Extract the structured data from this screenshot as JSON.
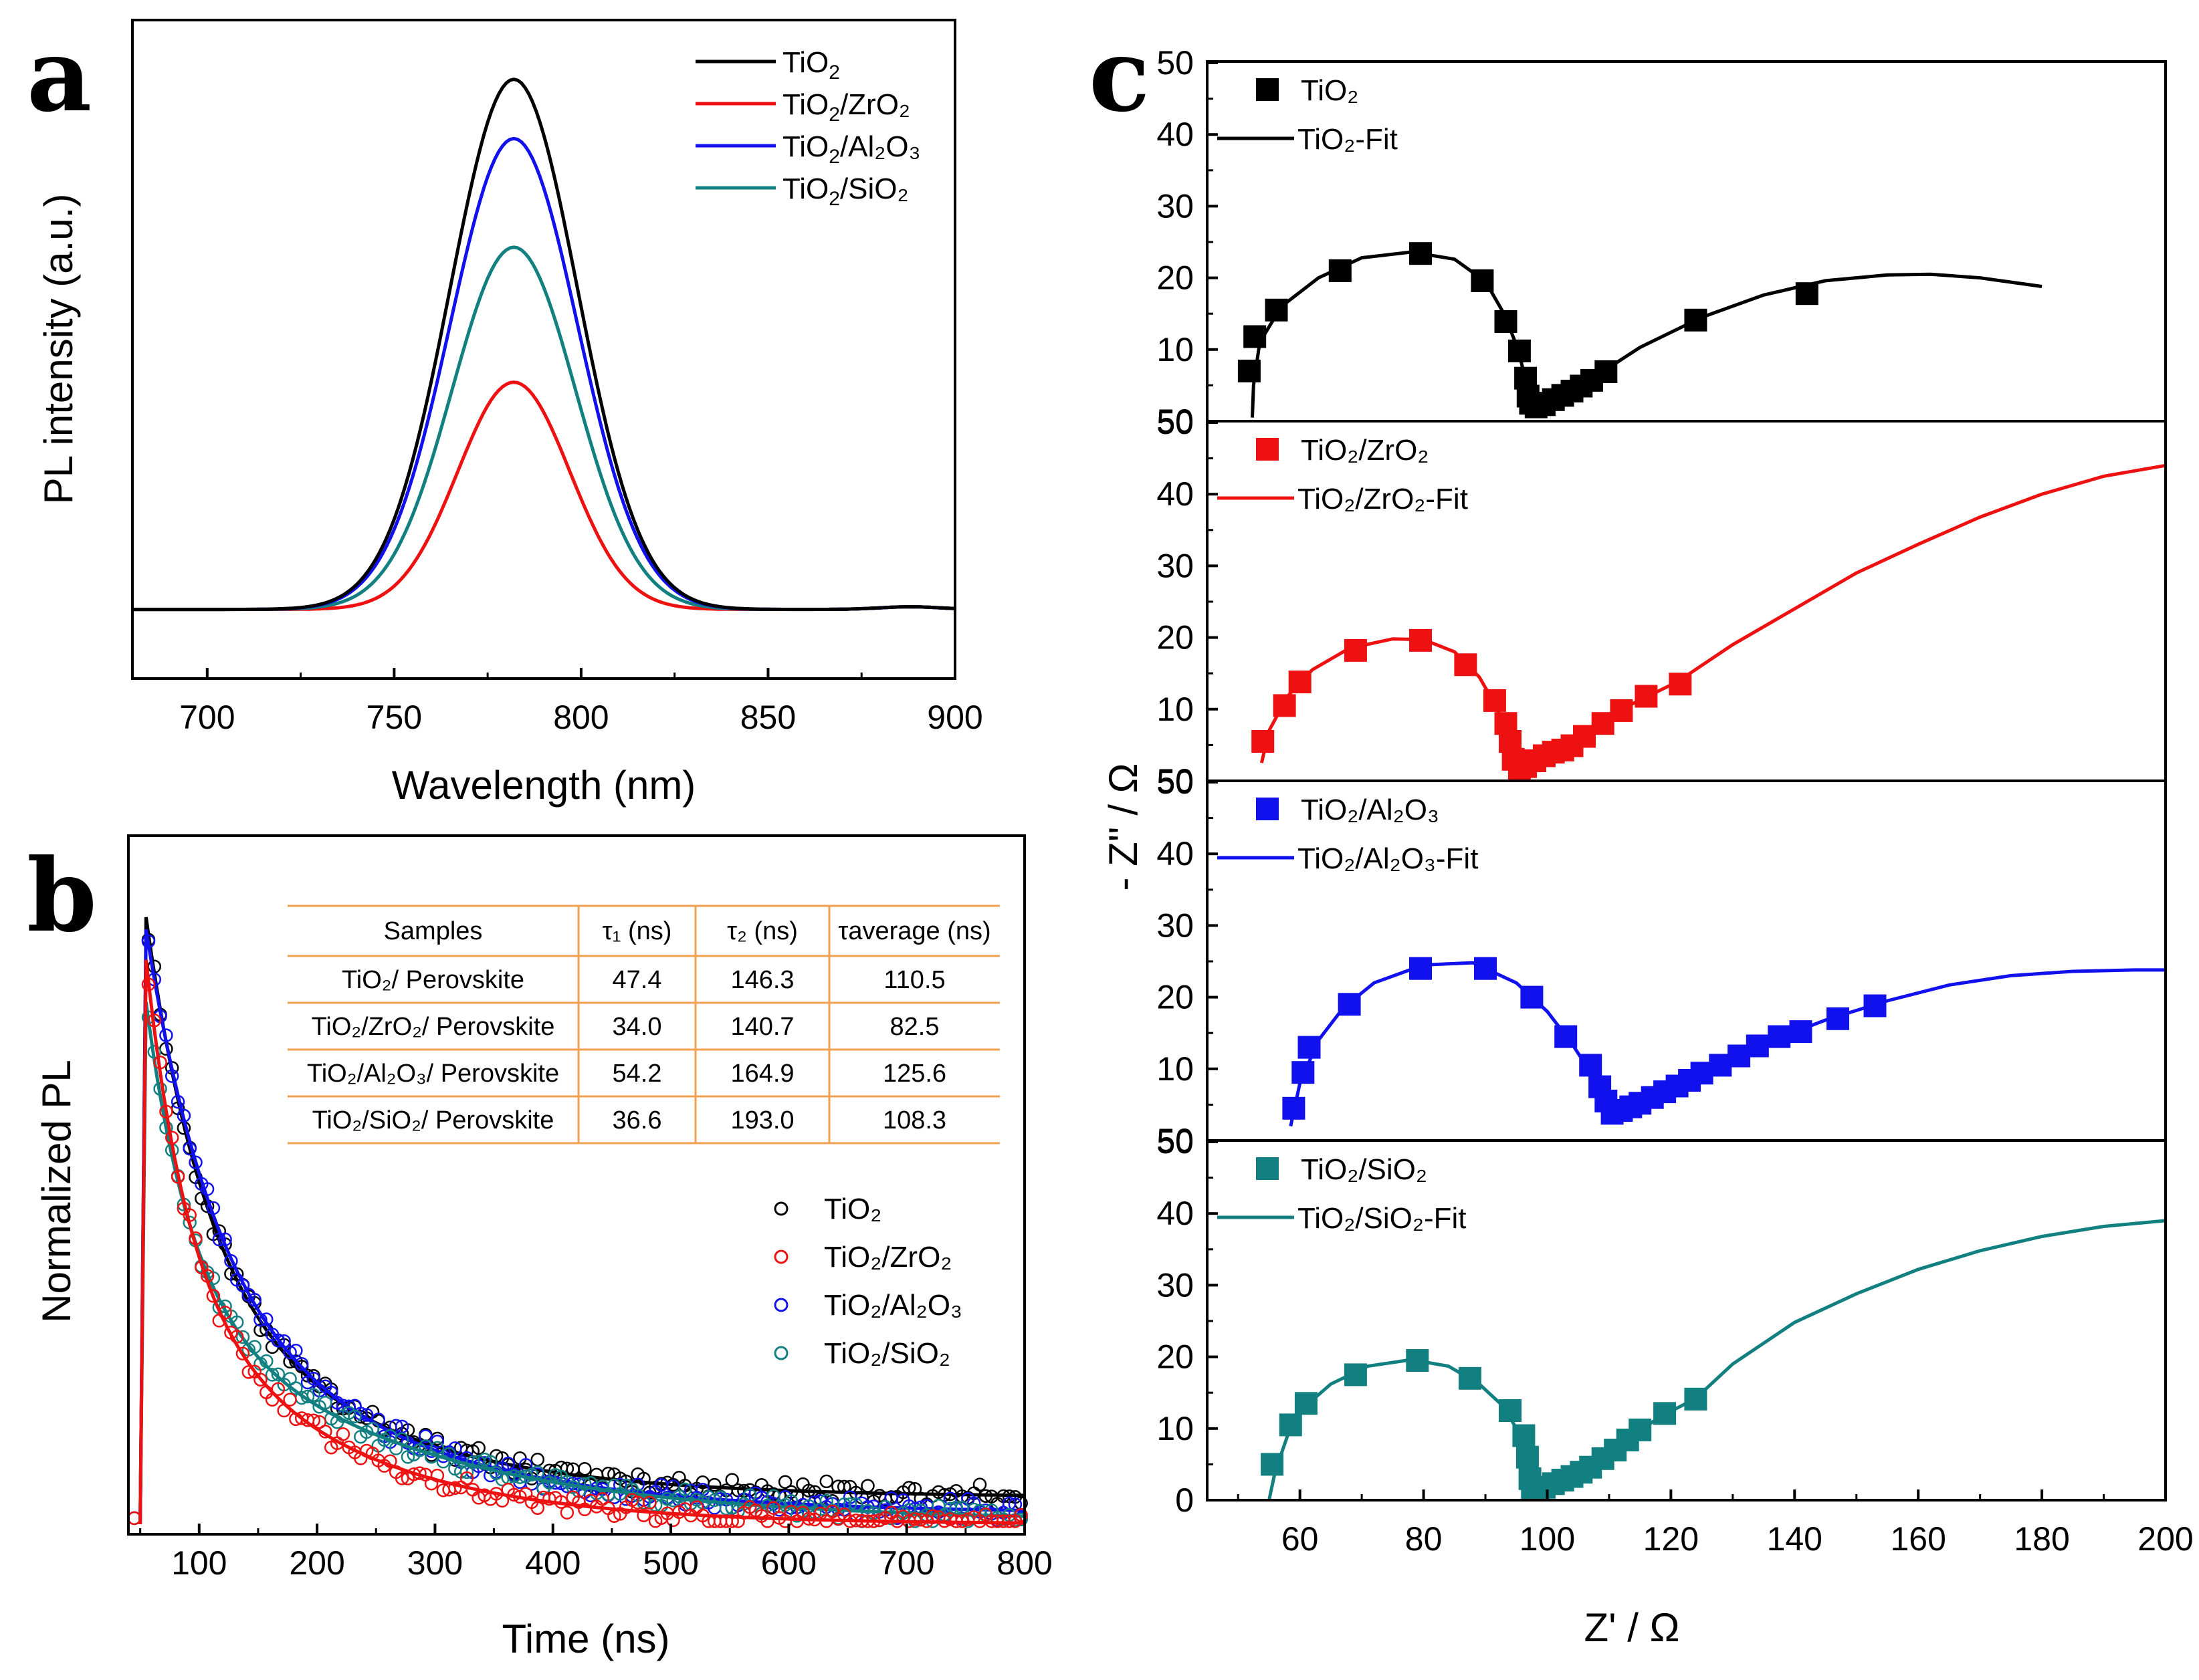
{
  "colors": {
    "tio2": "#000000",
    "zro2": "#ee1111",
    "al2o3": "#1111ee",
    "sio2": "#128080",
    "table_line": "#f0a050"
  },
  "panels": {
    "a": "a",
    "b": "b",
    "c": "c"
  },
  "chart_data": [
    {
      "id": "a",
      "type": "line",
      "title": "",
      "xlabel": "Wavelength (nm)",
      "ylabel": "PL intensity (a.u.)",
      "xlim": [
        680,
        900
      ],
      "ylim": [
        0,
        1
      ],
      "xticks": [
        "700",
        "750",
        "800",
        "850",
        "900"
      ],
      "x_units": "nm",
      "series": [
        {
          "name": "TiO2",
          "label_base": "TiO",
          "label_sub": "2",
          "label_rest": "",
          "color": "#000000",
          "peak_nm": 782,
          "peak": 0.805,
          "sigma": 17.0,
          "baseline": 0.105
        },
        {
          "name": "TiO2/ZrO2",
          "label_base": "TiO",
          "label_sub": "2",
          "label_rest": "/ZrO₂",
          "color": "#ee1111",
          "peak_nm": 782,
          "peak": 0.345,
          "sigma": 15.0,
          "baseline": 0.105
        },
        {
          "name": "TiO2/Al2O3",
          "label_base": "TiO",
          "label_sub": "2",
          "label_rest": "/Al₂O₃",
          "color": "#1111ee",
          "peak_nm": 782,
          "peak": 0.715,
          "sigma": 17.0,
          "baseline": 0.105
        },
        {
          "name": "TiO2/SiO2",
          "label_base": "TiO",
          "label_sub": "2",
          "label_rest": "/SiO₂",
          "color": "#128080",
          "peak_nm": 782,
          "peak": 0.55,
          "sigma": 16.5,
          "baseline": 0.105
        }
      ]
    },
    {
      "id": "b",
      "type": "scatter",
      "title": "",
      "xlabel": "Time (ns)",
      "ylabel": "Normalized PL",
      "xlim": [
        40,
        800
      ],
      "ylim": [
        0,
        1
      ],
      "xticks": [
        "100",
        "200",
        "300",
        "400",
        "500",
        "600",
        "700",
        "800"
      ],
      "rise_ns": 55,
      "series": [
        {
          "name": "TiO2",
          "label": "TiO₂",
          "color": "#000000",
          "peak": 1.0,
          "tau1": 47.4,
          "tau2": 146.3,
          "offset": 0.045
        },
        {
          "name": "TiO2/ZrO2",
          "label": "TiO₂/ZrO₂",
          "color": "#ee1111",
          "peak": 0.93,
          "tau1": 34.0,
          "tau2": 140.7,
          "offset": 0.0
        },
        {
          "name": "TiO2/Al2O3",
          "label": "TiO₂/Al₂O₃",
          "color": "#1111ee",
          "peak": 0.98,
          "tau1": 54.2,
          "tau2": 164.9,
          "offset": 0.018
        },
        {
          "name": "TiO2/SiO2",
          "label": "TiO₂/SiO₂",
          "color": "#128080",
          "peak": 0.86,
          "tau1": 36.6,
          "tau2": 193.0,
          "offset": 0.005
        }
      ],
      "table": {
        "headers": [
          "Samples",
          "τ₁ (ns)",
          "τ₂ (ns)",
          "τaverage (ns)"
        ],
        "rows": [
          [
            "TiO₂/ Perovskite",
            "47.4",
            "146.3",
            "110.5"
          ],
          [
            "TiO₂/ZrO₂/ Perovskite",
            "34.0",
            "140.7",
            "82.5"
          ],
          [
            "TiO₂/Al₂O₃/ Perovskite",
            "54.2",
            "164.9",
            "125.6"
          ],
          [
            "TiO₂/SiO₂/ Perovskite",
            "36.6",
            "193.0",
            "108.3"
          ]
        ]
      }
    },
    {
      "id": "c",
      "type": "scatter",
      "title": "",
      "xlabel": "Z' / Ω",
      "ylabel": "- Z'' / Ω",
      "xlim": [
        45,
        200
      ],
      "ylim": [
        0,
        50
      ],
      "xticks": [
        "60",
        "80",
        "100",
        "120",
        "140",
        "160",
        "180",
        "200"
      ],
      "yticks": [
        "10",
        "20",
        "30",
        "40",
        "50"
      ],
      "bottom_ytick_label": "0",
      "stacked_ytick_label": "50",
      "subplots": [
        {
          "name": "TiO2",
          "label": "TiO₂",
          "fit_label": "TiO₂-Fit",
          "color": "#000000",
          "points": [
            [
              51.8,
              7
            ],
            [
              52.7,
              11.8
            ],
            [
              56.2,
              15.5
            ],
            [
              66.5,
              21
            ],
            [
              79.5,
              23.4
            ],
            [
              89.5,
              19.6
            ],
            [
              93.3,
              13.9
            ],
            [
              95.5,
              9.8
            ],
            [
              96.5,
              6
            ],
            [
              96.9,
              3.5
            ],
            [
              97.3,
              2.5
            ],
            [
              98.2,
              2
            ],
            [
              99.5,
              2.3
            ],
            [
              101,
              3
            ],
            [
              102.5,
              3.6
            ],
            [
              104,
              4.2
            ],
            [
              105.5,
              4.9
            ],
            [
              107.2,
              5.7
            ],
            [
              109.5,
              6.9
            ],
            [
              124,
              14.1
            ],
            [
              142,
              17.8
            ]
          ],
          "fit": [
            [
              52.3,
              0.5
            ],
            [
              52.5,
              5
            ],
            [
              53.5,
              11
            ],
            [
              57,
              16
            ],
            [
              63,
              20
            ],
            [
              70,
              22.8
            ],
            [
              78,
              23.6
            ],
            [
              85,
              22.6
            ],
            [
              90,
              19.5
            ],
            [
              93,
              15
            ],
            [
              95.3,
              10
            ],
            [
              96.7,
              5
            ],
            [
              97.5,
              2.3
            ],
            [
              99,
              1.9
            ],
            [
              102,
              3.3
            ],
            [
              107,
              5.8
            ],
            [
              115,
              10.3
            ],
            [
              125,
              14.5
            ],
            [
              135,
              17.6
            ],
            [
              145,
              19.6
            ],
            [
              155,
              20.4
            ],
            [
              162,
              20.5
            ],
            [
              170,
              20
            ],
            [
              180,
              18.8
            ]
          ]
        },
        {
          "name": "TiO2/ZrO2",
          "label": "TiO₂/ZrO₂",
          "fit_label": "TiO₂/ZrO₂-Fit",
          "color": "#ee1111",
          "points": [
            [
              54,
              5.5
            ],
            [
              57.5,
              10.5
            ],
            [
              60,
              13.8
            ],
            [
              69,
              18.2
            ],
            [
              79.5,
              19.6
            ],
            [
              86.8,
              16.2
            ],
            [
              91.5,
              11.2
            ],
            [
              93.3,
              8
            ],
            [
              94,
              5.5
            ],
            [
              94.5,
              3
            ],
            [
              95.5,
              1.5
            ],
            [
              96.5,
              2
            ],
            [
              98,
              2.8
            ],
            [
              99.5,
              3.5
            ],
            [
              101,
              4
            ],
            [
              102.5,
              4.3
            ],
            [
              104,
              4.9
            ],
            [
              106,
              6.2
            ],
            [
              109,
              8
            ],
            [
              112,
              9.8
            ],
            [
              116,
              11.8
            ],
            [
              121.5,
              13.5
            ]
          ],
          "fit": [
            [
              53.8,
              2.5
            ],
            [
              55,
              7
            ],
            [
              58,
              11.8
            ],
            [
              62,
              15.5
            ],
            [
              68,
              18.5
            ],
            [
              75,
              19.8
            ],
            [
              80,
              19.7
            ],
            [
              85,
              18
            ],
            [
              89,
              14.5
            ],
            [
              92,
              10
            ],
            [
              93.6,
              5
            ],
            [
              94.5,
              1.5
            ],
            [
              96,
              1.3
            ],
            [
              100,
              3.5
            ],
            [
              105,
              5.8
            ],
            [
              112,
              10
            ],
            [
              121,
              13.8
            ],
            [
              130,
              19
            ],
            [
              140,
              24
            ],
            [
              150,
              29
            ],
            [
              160,
              33
            ],
            [
              170,
              36.8
            ],
            [
              180,
              40
            ],
            [
              190,
              42.5
            ],
            [
              200,
              44
            ]
          ]
        },
        {
          "name": "TiO2/Al2O3",
          "label": "TiO₂/Al₂O₃",
          "fit_label": "TiO₂/Al₂O₃-Fit",
          "color": "#1111ee",
          "points": [
            [
              59,
              4.5
            ],
            [
              60.5,
              9.5
            ],
            [
              61.5,
              13
            ],
            [
              68,
              19
            ],
            [
              79.5,
              24
            ],
            [
              90,
              24
            ],
            [
              97.5,
              20
            ],
            [
              103,
              14.5
            ],
            [
              107,
              10.5
            ],
            [
              108.5,
              7.5
            ],
            [
              109.5,
              5.5
            ],
            [
              110.5,
              3.8
            ],
            [
              112,
              4.2
            ],
            [
              113.5,
              4.7
            ],
            [
              115,
              5.2
            ],
            [
              117,
              6
            ],
            [
              119,
              6.8
            ],
            [
              121,
              7.6
            ],
            [
              123,
              8.4
            ],
            [
              125,
              9.4
            ],
            [
              128,
              10.5
            ],
            [
              131,
              11.8
            ],
            [
              134,
              13.2
            ],
            [
              137.5,
              14.5
            ],
            [
              141,
              15.2
            ],
            [
              147,
              17
            ],
            [
              153,
              18.8
            ]
          ],
          "fit": [
            [
              58.5,
              2
            ],
            [
              60,
              8
            ],
            [
              63,
              14
            ],
            [
              67,
              18.5
            ],
            [
              72,
              22
            ],
            [
              80,
              24.5
            ],
            [
              88,
              24.8
            ],
            [
              95,
              22
            ],
            [
              100,
              18
            ],
            [
              104,
              13.5
            ],
            [
              107,
              9.5
            ],
            [
              109.5,
              5.5
            ],
            [
              111,
              3.6
            ],
            [
              113,
              4.2
            ],
            [
              118,
              6.3
            ],
            [
              125,
              9.2
            ],
            [
              135,
              13.5
            ],
            [
              145,
              16.8
            ],
            [
              155,
              19.5
            ],
            [
              165,
              21.7
            ],
            [
              175,
              23
            ],
            [
              185,
              23.6
            ],
            [
              195,
              23.8
            ],
            [
              200,
              23.8
            ]
          ]
        },
        {
          "name": "TiO2/SiO2",
          "label": "TiO₂/SiO₂",
          "fit_label": "TiO₂/SiO₂-Fit",
          "color": "#128080",
          "points": [
            [
              55.5,
              5
            ],
            [
              58.5,
              10.5
            ],
            [
              61,
              13.5
            ],
            [
              69,
              17.5
            ],
            [
              79,
              19.5
            ],
            [
              87.5,
              17
            ],
            [
              94,
              12.5
            ],
            [
              96.2,
              9
            ],
            [
              96.8,
              6
            ],
            [
              97.2,
              3
            ],
            [
              97.6,
              1.5
            ],
            [
              98.5,
              1.5
            ],
            [
              99.5,
              1.8
            ],
            [
              101,
              2.3
            ],
            [
              102.5,
              2.8
            ],
            [
              104,
              3.3
            ],
            [
              105.5,
              3.9
            ],
            [
              107,
              4.6
            ],
            [
              109,
              5.8
            ],
            [
              111,
              7
            ],
            [
              113,
              8.4
            ],
            [
              115,
              9.8
            ],
            [
              119,
              12.1
            ],
            [
              124,
              14.1
            ]
          ],
          "fit": [
            [
              55,
              0
            ],
            [
              56,
              4
            ],
            [
              58,
              9
            ],
            [
              61,
              13.2
            ],
            [
              65,
              16.2
            ],
            [
              71,
              18.7
            ],
            [
              78,
              19.6
            ],
            [
              84,
              18.7
            ],
            [
              89,
              16.2
            ],
            [
              93,
              13
            ],
            [
              96,
              8.5
            ],
            [
              97.3,
              3.5
            ],
            [
              98,
              0.8
            ],
            [
              99.5,
              1.6
            ],
            [
              104,
              3.3
            ],
            [
              110,
              6.6
            ],
            [
              118,
              11.5
            ],
            [
              124,
              14.2
            ],
            [
              130,
              19
            ],
            [
              140,
              24.8
            ],
            [
              150,
              28.8
            ],
            [
              160,
              32.2
            ],
            [
              170,
              34.8
            ],
            [
              180,
              36.8
            ],
            [
              190,
              38.2
            ],
            [
              200,
              39
            ]
          ]
        }
      ]
    }
  ]
}
